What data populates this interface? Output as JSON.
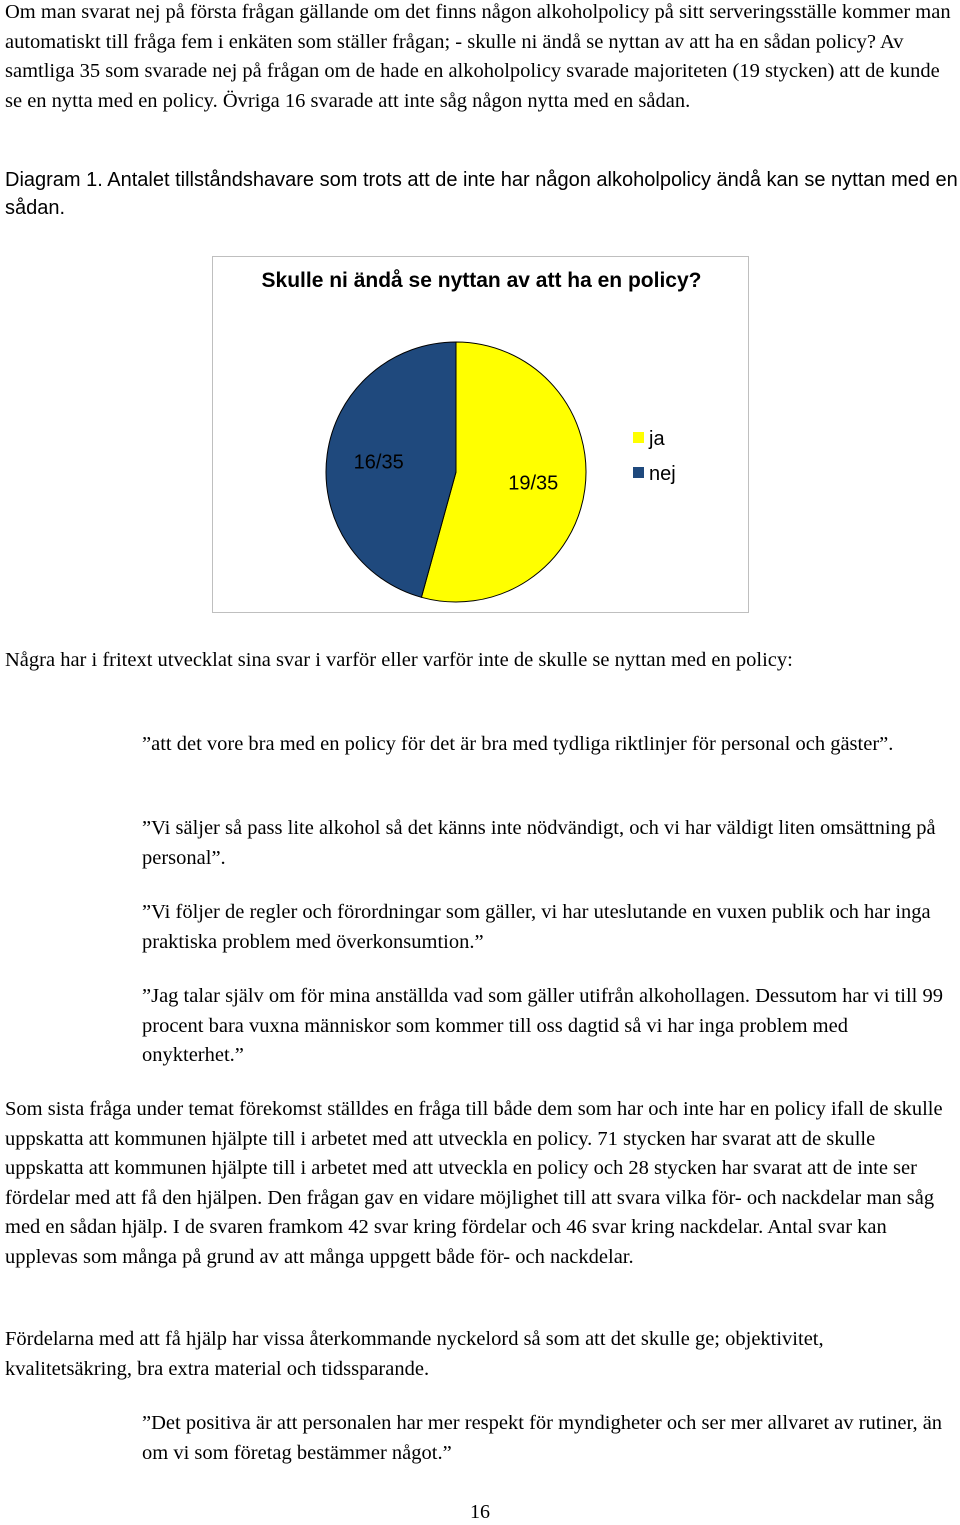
{
  "intro": "Om man svarat nej på första frågan gällande om det finns någon alkoholpolicy på sitt serveringsställe kommer man automatiskt till fråga fem i enkäten som ställer frågan; - skulle ni ändå se nyttan av att ha en sådan policy? Av samtliga 35 som svarade nej på frågan om de hade en alkoholpolicy svarade majoriteten (19 stycken) att de kunde se en nytta med en policy. Övriga 16 svarade att inte såg någon nytta med en sådan.",
  "caption": "Diagram 1. Antalet tillståndshavare som trots att de inte har någon alkoholpolicy ändå kan se nyttan med en sådan.",
  "chart_data": {
    "type": "pie",
    "title": "Skulle ni ändå se nyttan av att ha en policy?",
    "slices": [
      {
        "name": "ja",
        "value": 19,
        "label": "19/35",
        "color": "#ffff00"
      },
      {
        "name": "nej",
        "value": 16,
        "label": "16/35",
        "color": "#1f497d"
      }
    ],
    "legend_position": "right",
    "border_color": "#000000"
  },
  "freetext_intro": "Några har i fritext utvecklat sina svar i varför eller varför inte de skulle se nyttan med en policy:",
  "quotes": [
    "”att det vore bra med en policy för det är bra med tydliga riktlinjer för personal och gäster”.",
    "”Vi säljer så pass lite alkohol så det känns inte nödvändigt, och vi har väldigt liten omsättning på personal”.",
    "”Vi följer de regler och förordningar som gäller, vi har uteslutande en vuxen publik och har inga praktiska problem med överkonsumtion.”",
    "”Jag talar själv om för mina anställda vad som gäller utifrån alkohollagen. Dessutom har vi till 99 procent bara vuxna människor som kommer till oss dagtid så vi har inga problem med onykterhet.”",
    "”Det positiva är att personalen har mer respekt för myndigheter och ser mer allvaret av rutiner, än om vi som företag bestämmer något.”"
  ],
  "para_final": "Som sista fråga under temat förekomst ställdes en fråga till både dem som har och inte har en policy ifall de skulle uppskatta att kommunen hjälpte till i arbetet med att utveckla en policy. 71 stycken har svarat att de skulle uppskatta att kommunen hjälpte till i arbetet med att utveckla en policy och 28 stycken har svarat att de inte ser fördelar med att få den hjälpen. Den frågan gav en vidare möjlighet till att svara vilka för- och nackdelar man såg med en sådan hjälp. I de svaren framkom 42 svar kring fördelar och 46 svar kring nackdelar. Antal svar kan upplevas som många på grund av att många uppgett både för- och nackdelar.",
  "para_advantages": "Fördelarna med att få hjälp har vissa återkommande nyckelord så som att det skulle ge; objektivitet, kvalitetsäkring, bra extra material och tidssparande.",
  "page_number": "16"
}
